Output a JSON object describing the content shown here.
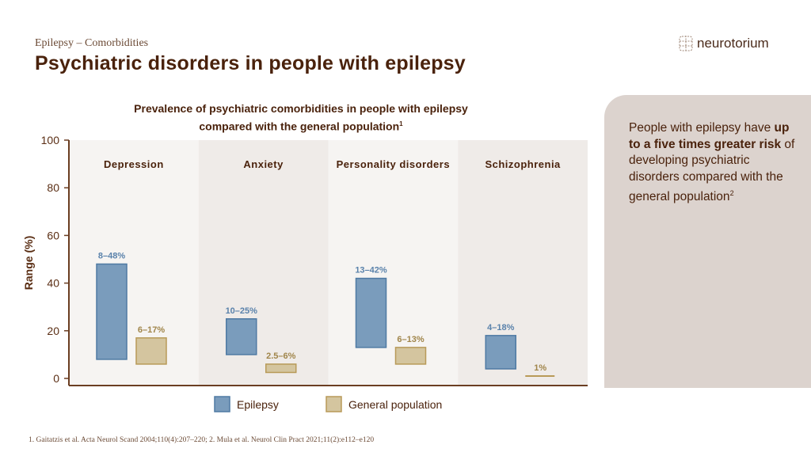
{
  "header": {
    "kicker": "Epilepsy – Comorbidities",
    "title": "Psychiatric disorders in people with epilepsy",
    "logo_text": "neurotorium"
  },
  "chart_data": {
    "type": "bar",
    "subtype": "floating-range",
    "title_line1": "Prevalence of psychiatric comorbidities in people with epilepsy",
    "title_line2": "compared with the general population",
    "title_sup": "1",
    "ylabel": "Range (%)",
    "ylim": [
      0,
      100
    ],
    "yticks": [
      0,
      20,
      40,
      60,
      80,
      100
    ],
    "grid": false,
    "legend_position": "bottom",
    "categories": [
      "Depression",
      "Anxiety",
      "Personality disorders",
      "Schizophrenia"
    ],
    "series": [
      {
        "name": "Epilepsy",
        "color": "#7a9cbc",
        "stroke": "#4f7aa3",
        "ranges": [
          [
            8,
            48
          ],
          [
            10,
            25
          ],
          [
            13,
            42
          ],
          [
            4,
            18
          ]
        ],
        "labels": [
          "8–48%",
          "10–25%",
          "13–42%",
          "4–18%"
        ],
        "label_color": "#5a82ab"
      },
      {
        "name": "General population",
        "color": "#d4c59f",
        "stroke": "#b89a58",
        "ranges": [
          [
            6,
            17
          ],
          [
            2.5,
            6
          ],
          [
            6,
            13
          ],
          [
            1,
            1
          ]
        ],
        "labels": [
          "6–17%",
          "2.5–6%",
          "6–13%",
          "1%"
        ],
        "label_color": "#a0854a"
      }
    ]
  },
  "panel": {
    "text_before": "People with epilepsy have ",
    "text_bold": "up to a five times greater risk",
    "text_after": " of developing psychiatric disorders compared with the general population",
    "sup": "2"
  },
  "footnote": "1. Gaitatzis et al. Acta Neurol Scand 2004;110(4):207–220; 2. Mula et al. Neurol Clin Pract 2021;11(2):e112–e120"
}
